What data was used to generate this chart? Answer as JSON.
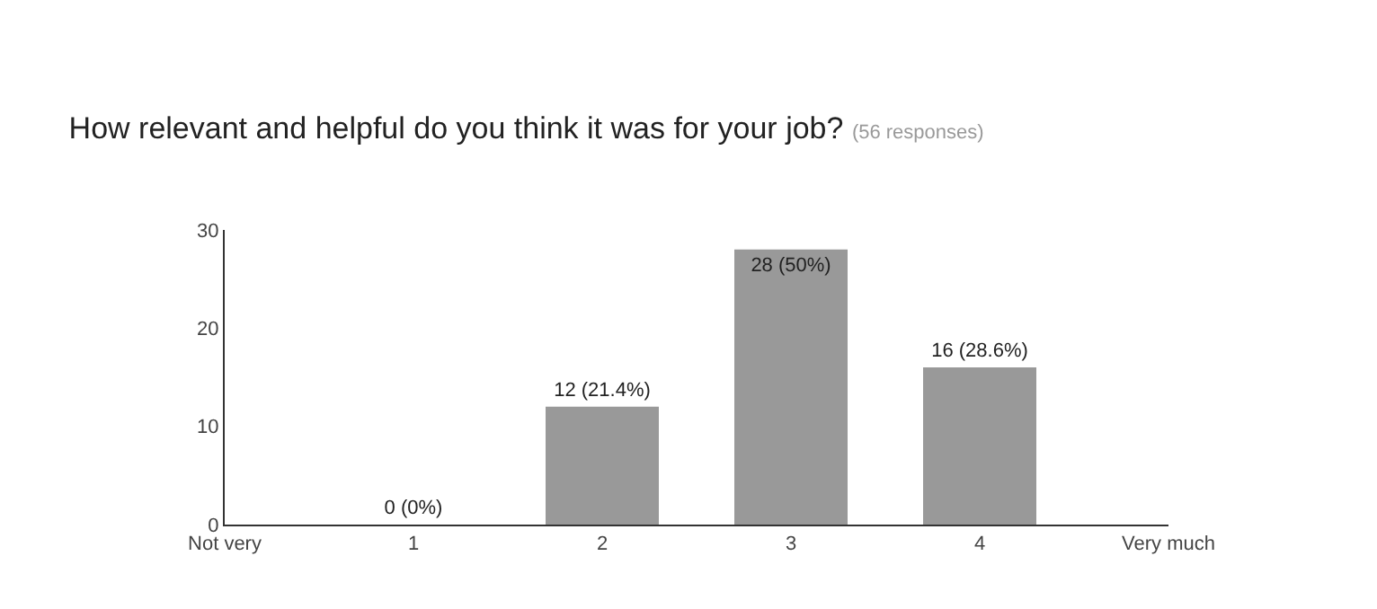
{
  "chart_data": {
    "type": "bar",
    "title": "How relevant and helpful do you think it was for your job?",
    "subtitle": "(56 responses)",
    "x": [
      1,
      2,
      3,
      4
    ],
    "values": [
      0,
      12,
      28,
      16
    ],
    "color": "#999999",
    "value_labels": [
      "0 (0%)",
      "12 (21.4%)",
      "28 (50%)",
      "16 (28.6%)"
    ],
    "xlim": [
      0,
      5
    ],
    "xticks": [
      {
        "value": 0,
        "label": "Not very"
      },
      1,
      2,
      3,
      4,
      {
        "value": 5,
        "label": "Very much"
      }
    ],
    "ylim": [
      0,
      30
    ],
    "yticks": [
      0,
      10,
      20,
      30
    ],
    "grid": false,
    "legend": false
  }
}
